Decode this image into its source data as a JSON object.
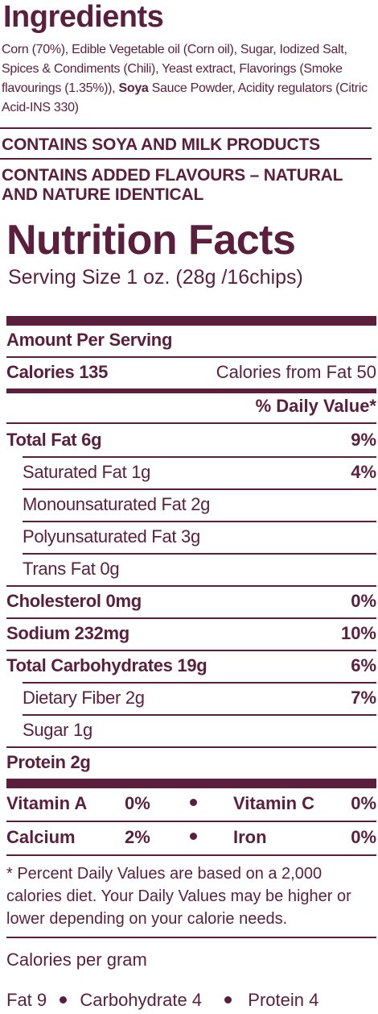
{
  "ingredients": {
    "title": "Ingredients",
    "text_part1": "Corn (70%), Edible Vegetable oil (Corn oil), Sugar, Iodized Salt, Spices & Condiments (Chili), Yeast extract, Flavorings (Smoke flavourings (1.35%)), ",
    "text_bold": "Soya",
    "text_part2": " Sauce Powder, Acidity regulators (Citric Acid-INS 330)"
  },
  "allergen": {
    "contains": "CONTAINS SOYA AND MILK PRODUCTS",
    "flavours": "CONTAINS ADDED FLAVOURS – NATURAL AND NATURE IDENTICAL"
  },
  "nutrition": {
    "title": "Nutrition Facts",
    "serving": "Serving Size 1 oz. (28g /16chips)",
    "amount_per_serving": "Amount Per Serving",
    "calories": "Calories 135",
    "calories_from_fat": "Calories from Fat 50",
    "daily_value_header": "% Daily Value*",
    "rows": [
      {
        "label": "Total Fat 6g",
        "value": "9%"
      },
      {
        "label": "Saturated Fat 1g",
        "value": "4%"
      },
      {
        "label": "Monounsaturated Fat 2g",
        "value": ""
      },
      {
        "label": "Polyunsaturated Fat 3g",
        "value": ""
      },
      {
        "label": "Trans Fat 0g",
        "value": ""
      },
      {
        "label": "Cholesterol 0mg",
        "value": "0%"
      },
      {
        "label": "Sodium 232mg",
        "value": "10%"
      },
      {
        "label": "Total Carbohydrates 19g",
        "value": "6%"
      },
      {
        "label": "Dietary Fiber 2g",
        "value": "7%"
      },
      {
        "label": "Sugar 1g",
        "value": ""
      },
      {
        "label": "Protein 2g",
        "value": ""
      }
    ],
    "vitamins": [
      {
        "left_label": "Vitamin A",
        "left_value": "0%",
        "right_label": "Vitamin C",
        "right_value": "0%"
      },
      {
        "left_label": "Calcium",
        "left_value": "2%",
        "right_label": "Iron",
        "right_value": "0%"
      }
    ],
    "footnote": "* Percent Daily Values are based on a 2,000 calories diet. Your Daily Values may be higher or lower depending on your calorie needs.",
    "calories_per_gram": "Calories per gram",
    "per_gram": {
      "fat": "Fat 9",
      "carb": "Carbohydrate 4",
      "protein": "Protein 4"
    }
  },
  "colors": {
    "text": "#5a1f3c",
    "background": "#ffffff"
  }
}
